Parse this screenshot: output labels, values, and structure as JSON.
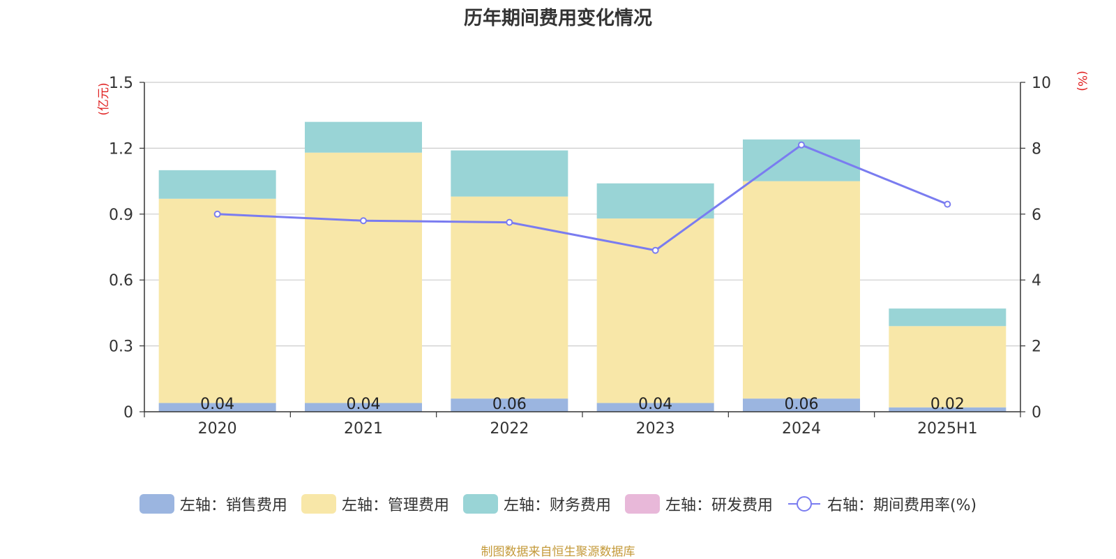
{
  "chart_data": {
    "type": "bar",
    "title": "历年期间费用变化情况",
    "categories": [
      "2020",
      "2021",
      "2022",
      "2023",
      "2024",
      "2025H1"
    ],
    "left_axis": {
      "unit_label": "(亿元)",
      "ticks": [
        "0",
        "0.3",
        "0.6",
        "0.9",
        "1.2",
        "1.5"
      ],
      "ylim": [
        0,
        1.5
      ]
    },
    "right_axis": {
      "unit_label": "(%)",
      "ticks": [
        "0",
        "2",
        "4",
        "6",
        "8",
        "10"
      ],
      "ylim": [
        0,
        10
      ]
    },
    "series": [
      {
        "name": "左轴：销售费用",
        "stack": true,
        "color": "#9bb5e0",
        "values": [
          0.04,
          0.04,
          0.06,
          0.04,
          0.06,
          0.02
        ],
        "labels": [
          "0.04",
          "0.04",
          "0.06",
          "0.04",
          "0.06",
          "0.02"
        ]
      },
      {
        "name": "左轴：管理费用",
        "stack": true,
        "color": "#f8e7a8",
        "values": [
          0.93,
          1.14,
          0.92,
          0.84,
          0.99,
          0.37
        ]
      },
      {
        "name": "左轴：财务费用",
        "stack": true,
        "color": "#99d4d6",
        "values": [
          0.13,
          0.14,
          0.21,
          0.16,
          0.19,
          0.08
        ]
      },
      {
        "name": "左轴：研发费用",
        "stack": true,
        "color": "#e8b8d9",
        "values": [
          0,
          0,
          0,
          0,
          0,
          0
        ]
      },
      {
        "name": "右轴：期间费用率(%)",
        "type": "line",
        "axis": "right",
        "color": "#7a7cf0",
        "values": [
          6.0,
          5.8,
          5.75,
          4.9,
          8.1,
          6.3
        ]
      }
    ],
    "grid": true,
    "legend_position": "bottom"
  },
  "footer": {
    "source": "制图数据来自恒生聚源数据库"
  }
}
